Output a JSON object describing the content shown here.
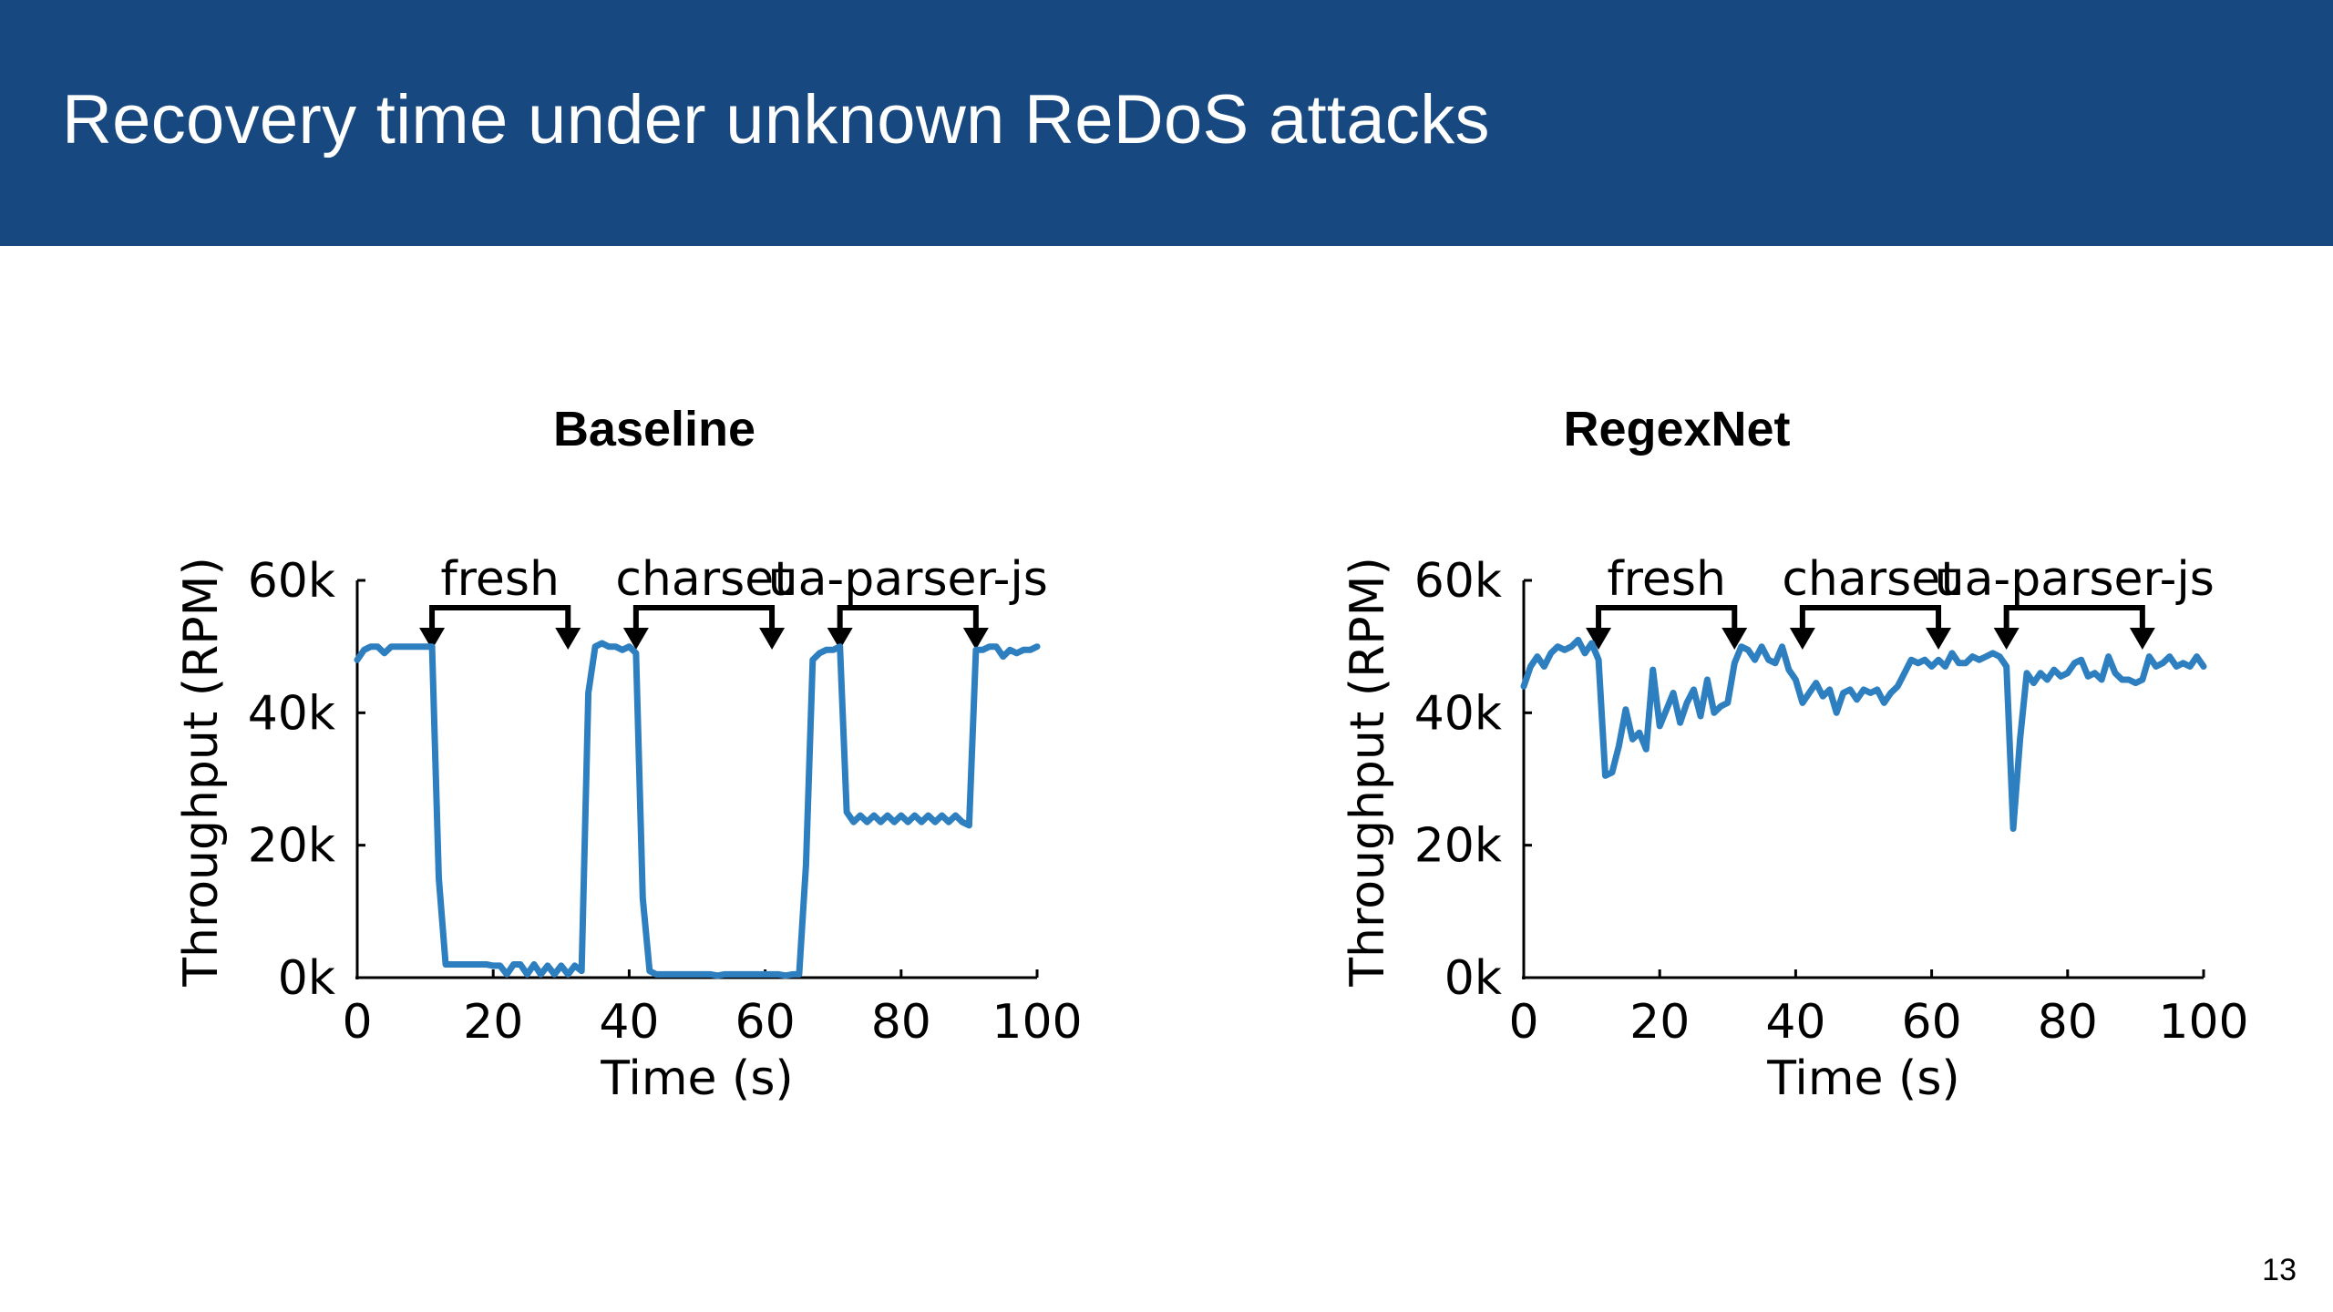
{
  "slide": {
    "title": "Recovery time under unknown ReDoS attacks",
    "page_number": "13"
  },
  "colors": {
    "header_bg": "#174880",
    "series": "#2e7fc0",
    "axis": "#000000"
  },
  "chart_data": [
    {
      "type": "line",
      "title": "Baseline",
      "xlabel": "Time (s)",
      "ylabel": "Throughput (RPM)",
      "xlim": [
        0,
        100
      ],
      "ylim": [
        0,
        60000
      ],
      "xticks": [
        0,
        20,
        40,
        60,
        80,
        100
      ],
      "xtick_labels": [
        "0",
        "20",
        "40",
        "60",
        "80",
        "100"
      ],
      "yticks": [
        0,
        20000,
        40000,
        60000
      ],
      "ytick_labels": [
        "0k",
        "20k",
        "40k",
        "60k"
      ],
      "annotations": [
        {
          "label": "fresh",
          "start": 11,
          "end": 31
        },
        {
          "label": "charset",
          "start": 41,
          "end": 61
        },
        {
          "label": "ua-parser-js",
          "start": 71,
          "end": 91
        }
      ],
      "series": [
        {
          "x": [
            0,
            1,
            2,
            3,
            4,
            5,
            6,
            7,
            8,
            9,
            10,
            11,
            12,
            13,
            14,
            15,
            16,
            17,
            18,
            19,
            20,
            21,
            22,
            23,
            24,
            25,
            26,
            27,
            28,
            29,
            30,
            31,
            32,
            33,
            34,
            35,
            36,
            37,
            38,
            39,
            40,
            41,
            42,
            43,
            44,
            45,
            46,
            47,
            48,
            49,
            50,
            51,
            52,
            53,
            54,
            55,
            56,
            57,
            58,
            59,
            60,
            61,
            62,
            63,
            64,
            65,
            66,
            67,
            68,
            69,
            70,
            71,
            72,
            73,
            74,
            75,
            76,
            77,
            78,
            79,
            80,
            81,
            82,
            83,
            84,
            85,
            86,
            87,
            88,
            89,
            90,
            91,
            92,
            93,
            94,
            95,
            96,
            97,
            98,
            99,
            100
          ],
          "y": [
            48000,
            49500,
            50000,
            50000,
            49000,
            50000,
            50000,
            50000,
            50000,
            50000,
            50000,
            50000,
            15000,
            2000,
            2000,
            2000,
            2000,
            2000,
            2000,
            2000,
            1800,
            1800,
            500,
            2000,
            2000,
            500,
            2000,
            500,
            1800,
            500,
            1800,
            500,
            1800,
            1000,
            43000,
            50000,
            50500,
            50000,
            50000,
            49500,
            50000,
            49000,
            12000,
            1000,
            500,
            500,
            500,
            500,
            500,
            500,
            500,
            500,
            500,
            300,
            500,
            500,
            500,
            500,
            500,
            500,
            500,
            500,
            500,
            300,
            500,
            500,
            17000,
            48000,
            49000,
            49500,
            49500,
            50000,
            25000,
            23500,
            24500,
            23500,
            24500,
            23500,
            24500,
            23500,
            24500,
            23500,
            24500,
            23500,
            24500,
            23500,
            24500,
            23500,
            24500,
            23500,
            23000,
            49500,
            49500,
            50000,
            50000,
            48500,
            49500,
            49000,
            49500,
            49500,
            50000
          ]
        }
      ]
    },
    {
      "type": "line",
      "title": "RegexNet",
      "xlabel": "Time (s)",
      "ylabel": "Throughput (RPM)",
      "xlim": [
        0,
        100
      ],
      "ylim": [
        0,
        60000
      ],
      "xticks": [
        0,
        20,
        40,
        60,
        80,
        100
      ],
      "xtick_labels": [
        "0",
        "20",
        "40",
        "60",
        "80",
        "100"
      ],
      "yticks": [
        0,
        20000,
        40000,
        60000
      ],
      "ytick_labels": [
        "0k",
        "20k",
        "40k",
        "60k"
      ],
      "annotations": [
        {
          "label": "fresh",
          "start": 11,
          "end": 31
        },
        {
          "label": "charset",
          "start": 41,
          "end": 61
        },
        {
          "label": "ua-parser-js",
          "start": 71,
          "end": 91
        }
      ],
      "series": [
        {
          "x": [
            0,
            1,
            2,
            3,
            4,
            5,
            6,
            7,
            8,
            9,
            10,
            11,
            12,
            13,
            14,
            15,
            16,
            17,
            18,
            19,
            20,
            21,
            22,
            23,
            24,
            25,
            26,
            27,
            28,
            29,
            30,
            31,
            32,
            33,
            34,
            35,
            36,
            37,
            38,
            39,
            40,
            41,
            42,
            43,
            44,
            45,
            46,
            47,
            48,
            49,
            50,
            51,
            52,
            53,
            54,
            55,
            56,
            57,
            58,
            59,
            60,
            61,
            62,
            63,
            64,
            65,
            66,
            67,
            68,
            69,
            70,
            71,
            72,
            73,
            74,
            75,
            76,
            77,
            78,
            79,
            80,
            81,
            82,
            83,
            84,
            85,
            86,
            87,
            88,
            89,
            90,
            91,
            92,
            93,
            94,
            95,
            96,
            97,
            98,
            99,
            100
          ],
          "y": [
            44000,
            47000,
            48500,
            47000,
            49000,
            50000,
            49500,
            50000,
            51000,
            49000,
            50500,
            48000,
            30500,
            31000,
            35000,
            40500,
            36000,
            37000,
            34500,
            46500,
            38000,
            40500,
            43000,
            38500,
            41500,
            43500,
            39500,
            45000,
            40000,
            41000,
            41500,
            47500,
            50000,
            49500,
            48000,
            50000,
            48000,
            47500,
            50000,
            46500,
            45000,
            41500,
            43000,
            44500,
            42500,
            43500,
            40000,
            43000,
            43500,
            42000,
            43500,
            43000,
            43500,
            41500,
            43000,
            44000,
            46000,
            48000,
            47500,
            48000,
            47000,
            48000,
            47000,
            49000,
            47500,
            47500,
            48500,
            48000,
            48500,
            49000,
            48500,
            47000,
            22500,
            36000,
            46000,
            44500,
            46000,
            45000,
            46500,
            45500,
            46000,
            47500,
            48000,
            45500,
            46000,
            45000,
            48500,
            46000,
            45000,
            45000,
            44500,
            45000,
            48500,
            47000,
            47500,
            48500,
            47000,
            47500,
            47000,
            48500,
            47000
          ]
        }
      ]
    }
  ]
}
